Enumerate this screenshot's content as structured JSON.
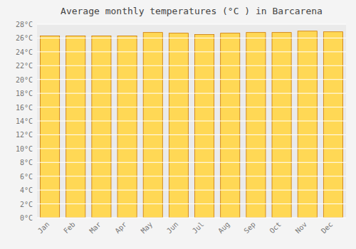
{
  "chart_data": {
    "type": "bar",
    "title": "Average monthly temperatures (°C ) in Barcarena",
    "categories": [
      "Jan",
      "Feb",
      "Mar",
      "Apr",
      "May",
      "Jun",
      "Jul",
      "Aug",
      "Sep",
      "Oct",
      "Nov",
      "Dec"
    ],
    "values": [
      26.3,
      26.3,
      26.3,
      26.3,
      26.8,
      26.7,
      26.5,
      26.7,
      26.8,
      26.8,
      27.0,
      26.9
    ],
    "color": "#FFD855",
    "ylim": [
      0,
      28
    ],
    "yticks": [
      {
        "value": 0,
        "label": "0°C"
      },
      {
        "value": 2,
        "label": "2°C"
      },
      {
        "value": 4,
        "label": "4°C"
      },
      {
        "value": 6,
        "label": "6°C"
      },
      {
        "value": 8,
        "label": "8°C"
      },
      {
        "value": 10,
        "label": "10°C"
      },
      {
        "value": 12,
        "label": "12°C"
      },
      {
        "value": 14,
        "label": "14°C"
      },
      {
        "value": 16,
        "label": "16°C"
      },
      {
        "value": 18,
        "label": "18°C"
      },
      {
        "value": 20,
        "label": "20°C"
      },
      {
        "value": 22,
        "label": "22°C"
      },
      {
        "value": 24,
        "label": "24°C"
      },
      {
        "value": 26,
        "label": "26°C"
      },
      {
        "value": 28,
        "label": "28°C"
      }
    ],
    "grid": true
  }
}
